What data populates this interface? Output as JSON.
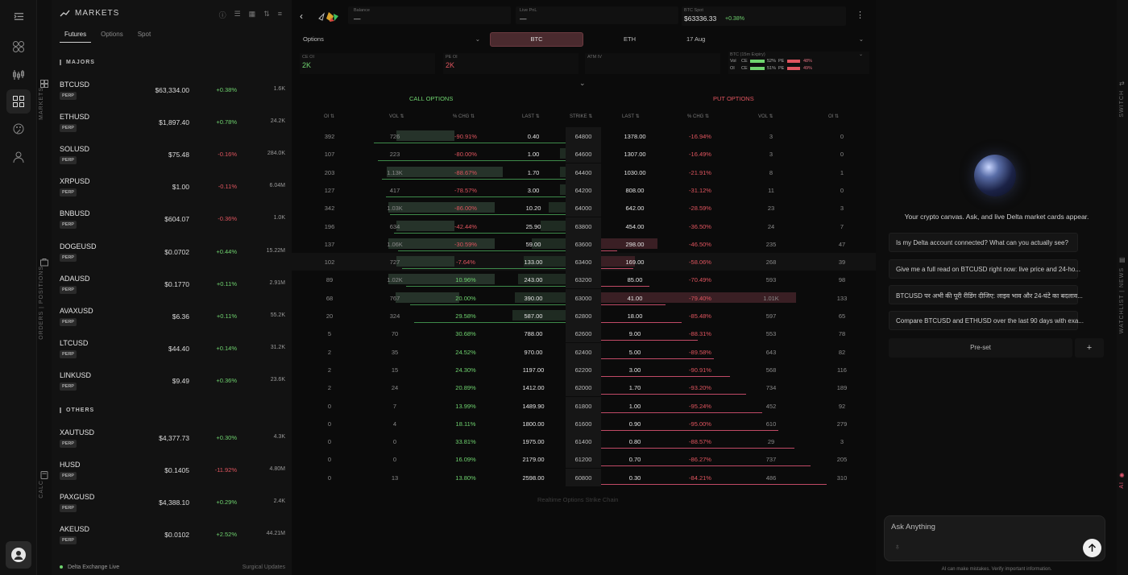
{
  "nav": {
    "items": [
      "collapse-icon",
      "grid-icon",
      "chart-icon",
      "markets-icon",
      "palette-icon",
      "user-icon"
    ],
    "side_labels": {
      "markets": "MARKETS",
      "orders": "ORDERS | POSITIONS",
      "calc": "CALC"
    }
  },
  "markets": {
    "title": "MARKETS",
    "tabs": [
      "Futures",
      "Options",
      "Spot"
    ],
    "active_tab": "Futures",
    "sections": {
      "majors": "MAJORS",
      "others": "OTHERS"
    },
    "perp_label": "PERP",
    "rows": [
      {
        "symbol": "BTCUSD",
        "price": "$63,334.00",
        "change": "+0.38%",
        "volume": "1.6K",
        "dir": "pos"
      },
      {
        "symbol": "ETHUSD",
        "price": "$1,897.40",
        "change": "+0.78%",
        "volume": "24.2K",
        "dir": "pos"
      },
      {
        "symbol": "SOLUSD",
        "price": "$75.48",
        "change": "-0.16%",
        "volume": "284.0K",
        "dir": "neg"
      },
      {
        "symbol": "XRPUSD",
        "price": "$1.00",
        "change": "-0.11%",
        "volume": "6.04M",
        "dir": "neg"
      },
      {
        "symbol": "BNBUSD",
        "price": "$604.07",
        "change": "-0.36%",
        "volume": "1.0K",
        "dir": "neg"
      },
      {
        "symbol": "DOGEUSD",
        "price": "$0.0702",
        "change": "+0.44%",
        "volume": "15.22M",
        "dir": "pos"
      },
      {
        "symbol": "ADAUSD",
        "price": "$0.1770",
        "change": "+0.11%",
        "volume": "2.91M",
        "dir": "pos"
      },
      {
        "symbol": "AVAXUSD",
        "price": "$6.36",
        "change": "+0.11%",
        "volume": "55.2K",
        "dir": "pos"
      },
      {
        "symbol": "LTCUSD",
        "price": "$44.40",
        "change": "+0.14%",
        "volume": "31.2K",
        "dir": "pos"
      },
      {
        "symbol": "LINKUSD",
        "price": "$9.49",
        "change": "+0.36%",
        "volume": "23.6K",
        "dir": "pos"
      }
    ],
    "others": [
      {
        "symbol": "XAUTUSD",
        "price": "$4,377.73",
        "change": "+0.30%",
        "volume": "4.3K",
        "dir": "pos"
      },
      {
        "symbol": "HUSD",
        "price": "$0.1405",
        "change": "-11.92%",
        "volume": "4.80M",
        "dir": "neg"
      },
      {
        "symbol": "PAXGUSD",
        "price": "$4,388.10",
        "change": "+0.29%",
        "volume": "2.4K",
        "dir": "pos"
      },
      {
        "symbol": "AKEUSD",
        "price": "$0.0102",
        "change": "+2.52%",
        "volume": "44.21M",
        "dir": "pos"
      }
    ],
    "footer_left": "Delta Exchange Live",
    "footer_right": "Surgical Updates"
  },
  "options": {
    "balance_label": "Balance",
    "balance_value": "—",
    "pnl_label": "Live PnL",
    "pnl_value": "—",
    "spot_label": "BTC Spot",
    "spot_value": "$63336.33",
    "spot_change": "+0.38%",
    "type_select": "Options",
    "asset_btc": "BTC",
    "asset_eth": "ETH",
    "expiry": "17 Aug",
    "ce_oi_label": "CE OI",
    "ce_oi": "2K",
    "pe_oi_label": "PE OI",
    "pe_oi": "2K",
    "atm_iv_label": "ATM IV",
    "mini_title": "BTC (15m Expiry)",
    "mini_vol": "Vol",
    "mini_oi": "OI",
    "mini_ce": "CE",
    "mini_pe": "PE",
    "mini_vol_ce": "52%",
    "mini_vol_pe": "48%",
    "mini_oi_ce": "51%",
    "mini_oi_pe": "49%",
    "call_title": "CALL OPTIONS",
    "put_title": "PUT OPTIONS",
    "headers": {
      "oi": "OI ⇅",
      "vol": "VOL ⇅",
      "chg": "% CHG ⇅",
      "last": "LAST ⇅",
      "strike": "STRIKE ⇅",
      "plast": "LAST ⇅",
      "pchg": "% CHG ⇅",
      "pvol": "VOL ⇅",
      "poi": "OI ⇅"
    },
    "footnote": "Realtime Options Strike Chain",
    "rows": [
      {
        "c_oi": "392",
        "c_vol": "726",
        "c_chg": "-90.91%",
        "c_last": "0.40",
        "strike": "64800",
        "p_last": "1378.00",
        "p_chg": "-16.94%",
        "p_vol": "3",
        "p_oi": "0",
        "cv": 0.3,
        "cl": 0.0,
        "pl": 0.0,
        "pv": 0.0
      },
      {
        "c_oi": "107",
        "c_vol": "223",
        "c_chg": "-80.00%",
        "c_last": "1.00",
        "strike": "64600",
        "p_last": "1307.00",
        "p_chg": "-16.49%",
        "p_vol": "3",
        "p_oi": "0",
        "cv": 0.0,
        "cl": 0.1,
        "pl": 0.0,
        "pv": 0.0
      },
      {
        "c_oi": "203",
        "c_vol": "1.13K",
        "c_chg": "-88.67%",
        "c_last": "1.70",
        "strike": "64400",
        "p_last": "1030.00",
        "p_chg": "-21.91%",
        "p_vol": "8",
        "p_oi": "1",
        "cv": 0.6,
        "cl": 0.1,
        "pl": 0.0,
        "pv": 0.0
      },
      {
        "c_oi": "127",
        "c_vol": "417",
        "c_chg": "-78.57%",
        "c_last": "3.00",
        "strike": "64200",
        "p_last": "808.00",
        "p_chg": "-31.12%",
        "p_vol": "11",
        "p_oi": "0",
        "cv": 0.0,
        "cl": 0.1,
        "pl": 0.0,
        "pv": 0.0
      },
      {
        "c_oi": "342",
        "c_vol": "1.03K",
        "c_chg": "-86.00%",
        "c_last": "10.20",
        "strike": "64000",
        "p_last": "642.00",
        "p_chg": "-28.59%",
        "p_vol": "23",
        "p_oi": "3",
        "cv": 0.55,
        "cl": 0.3,
        "pl": 0.0,
        "pv": 0.0
      },
      {
        "c_oi": "196",
        "c_vol": "634",
        "c_chg": "-42.44%",
        "c_last": "25.90",
        "strike": "63800",
        "p_last": "454.00",
        "p_chg": "-36.50%",
        "p_vol": "24",
        "p_oi": "7",
        "cv": 0.3,
        "cl": 0.45,
        "pl": 0.0,
        "pv": 0.0
      },
      {
        "c_oi": "137",
        "c_vol": "1.06K",
        "c_chg": "-30.59%",
        "c_last": "59.00",
        "strike": "63600",
        "p_last": "298.00",
        "p_chg": "-46.50%",
        "p_vol": "235",
        "p_oi": "47",
        "cv": 0.55,
        "cl": 0.6,
        "pl": 0.25,
        "pv": 0.0
      },
      {
        "c_oi": "102",
        "c_vol": "727",
        "c_chg": "-7.64%",
        "c_last": "133.00",
        "strike": "63400",
        "p_last": "169.00",
        "p_chg": "-58.06%",
        "p_vol": "268",
        "p_oi": "39",
        "cv": 0.3,
        "cl": 0.75,
        "pl": 0.15,
        "pv": 0.0
      },
      {
        "c_oi": "89",
        "c_vol": "1.02K",
        "c_chg": "10.96%",
        "c_last": "243.00",
        "strike": "63200",
        "p_last": "85.00",
        "p_chg": "-70.49%",
        "p_vol": "593",
        "p_oi": "98",
        "cv": 0.55,
        "cl": 0.85,
        "pl": 0.0,
        "pv": 0.0
      },
      {
        "c_oi": "68",
        "c_vol": "767",
        "c_chg": "20.00%",
        "c_last": "390.00",
        "strike": "63000",
        "p_last": "41.00",
        "p_chg": "-79.40%",
        "p_vol": "1.01K",
        "p_oi": "133",
        "cv": 0.33,
        "cl": 0.9,
        "pl": 0.0,
        "pv": 0.55
      },
      {
        "c_oi": "20",
        "c_vol": "324",
        "c_chg": "29.58%",
        "c_last": "587.00",
        "strike": "62800",
        "p_last": "18.00",
        "p_chg": "-85.48%",
        "p_vol": "597",
        "p_oi": "65",
        "cv": 0.0,
        "cl": 0.95,
        "pl": 0.0,
        "pv": 0.0
      },
      {
        "c_oi": "5",
        "c_vol": "70",
        "c_chg": "30.68%",
        "c_last": "788.00",
        "strike": "62600",
        "p_last": "9.00",
        "p_chg": "-88.31%",
        "p_vol": "553",
        "p_oi": "78",
        "cv": 0.0,
        "cl": 0.0,
        "pl": 0.0,
        "pv": 0.0
      },
      {
        "c_oi": "2",
        "c_vol": "35",
        "c_chg": "24.52%",
        "c_last": "970.00",
        "strike": "62400",
        "p_last": "5.00",
        "p_chg": "-89.58%",
        "p_vol": "643",
        "p_oi": "82",
        "cv": 0.0,
        "cl": 0.0,
        "pl": 0.0,
        "pv": 0.0
      },
      {
        "c_oi": "2",
        "c_vol": "15",
        "c_chg": "24.30%",
        "c_last": "1197.00",
        "strike": "62200",
        "p_last": "3.00",
        "p_chg": "-90.91%",
        "p_vol": "568",
        "p_oi": "116",
        "cv": 0.0,
        "cl": 0.0,
        "pl": 0.0,
        "pv": 0.0
      },
      {
        "c_oi": "2",
        "c_vol": "24",
        "c_chg": "20.89%",
        "c_last": "1412.00",
        "strike": "62000",
        "p_last": "1.70",
        "p_chg": "-93.20%",
        "p_vol": "734",
        "p_oi": "189",
        "cv": 0.0,
        "cl": 0.0,
        "pl": 0.0,
        "pv": 0.0
      },
      {
        "c_oi": "0",
        "c_vol": "7",
        "c_chg": "13.99%",
        "c_last": "1489.90",
        "strike": "61800",
        "p_last": "1.00",
        "p_chg": "-95.24%",
        "p_vol": "452",
        "p_oi": "92",
        "cv": 0.0,
        "cl": 0.0,
        "pl": 0.0,
        "pv": 0.0
      },
      {
        "c_oi": "0",
        "c_vol": "4",
        "c_chg": "18.11%",
        "c_last": "1800.00",
        "strike": "61600",
        "p_last": "0.90",
        "p_chg": "-95.00%",
        "p_vol": "610",
        "p_oi": "279",
        "cv": 0.0,
        "cl": 0.0,
        "pl": 0.0,
        "pv": 0.0
      },
      {
        "c_oi": "0",
        "c_vol": "0",
        "c_chg": "33.81%",
        "c_last": "1975.00",
        "strike": "61400",
        "p_last": "0.80",
        "p_chg": "-88.57%",
        "p_vol": "29",
        "p_oi": "3",
        "cv": 0.0,
        "cl": 0.0,
        "pl": 0.0,
        "pv": 0.0
      },
      {
        "c_oi": "0",
        "c_vol": "0",
        "c_chg": "16.09%",
        "c_last": "2179.00",
        "strike": "61200",
        "p_last": "0.70",
        "p_chg": "-86.27%",
        "p_vol": "737",
        "p_oi": "205",
        "cv": 0.0,
        "cl": 0.0,
        "pl": 0.0,
        "pv": 0.0
      },
      {
        "c_oi": "0",
        "c_vol": "13",
        "c_chg": "13.80%",
        "c_last": "2598.00",
        "strike": "60800",
        "p_last": "0.30",
        "p_chg": "-84.21%",
        "p_vol": "486",
        "p_oi": "310",
        "cv": 0.0,
        "cl": 0.0,
        "pl": 0.0,
        "pv": 0.0
      }
    ]
  },
  "chat": {
    "tagline": "Your crypto canvas. Ask, and live Delta market cards appear.",
    "suggestions": [
      "Is my Delta account connected? What can you actually see?",
      "Give me a full read on BTCUSD right now: live price and 24-ho...",
      "BTCUSD पर अभी की पूरी रीडिंग दीजिए: लाइव भाव और 24-घंटे का बदलाव...",
      "Compare BTCUSD and ETHUSD over the last 90 days with exa..."
    ],
    "preset": "Pre-set",
    "add": "+",
    "input_placeholder": "Ask Anything",
    "disclaimer": "AI can make mistakes. Verify important information.",
    "side_switch": "SWITCH",
    "side_watch": "WATCHLIST | NEWS",
    "side_ai": "AI"
  },
  "colors": {
    "green": "#6fd36f",
    "red": "#e0555f",
    "accent": "#4a2a2e"
  }
}
